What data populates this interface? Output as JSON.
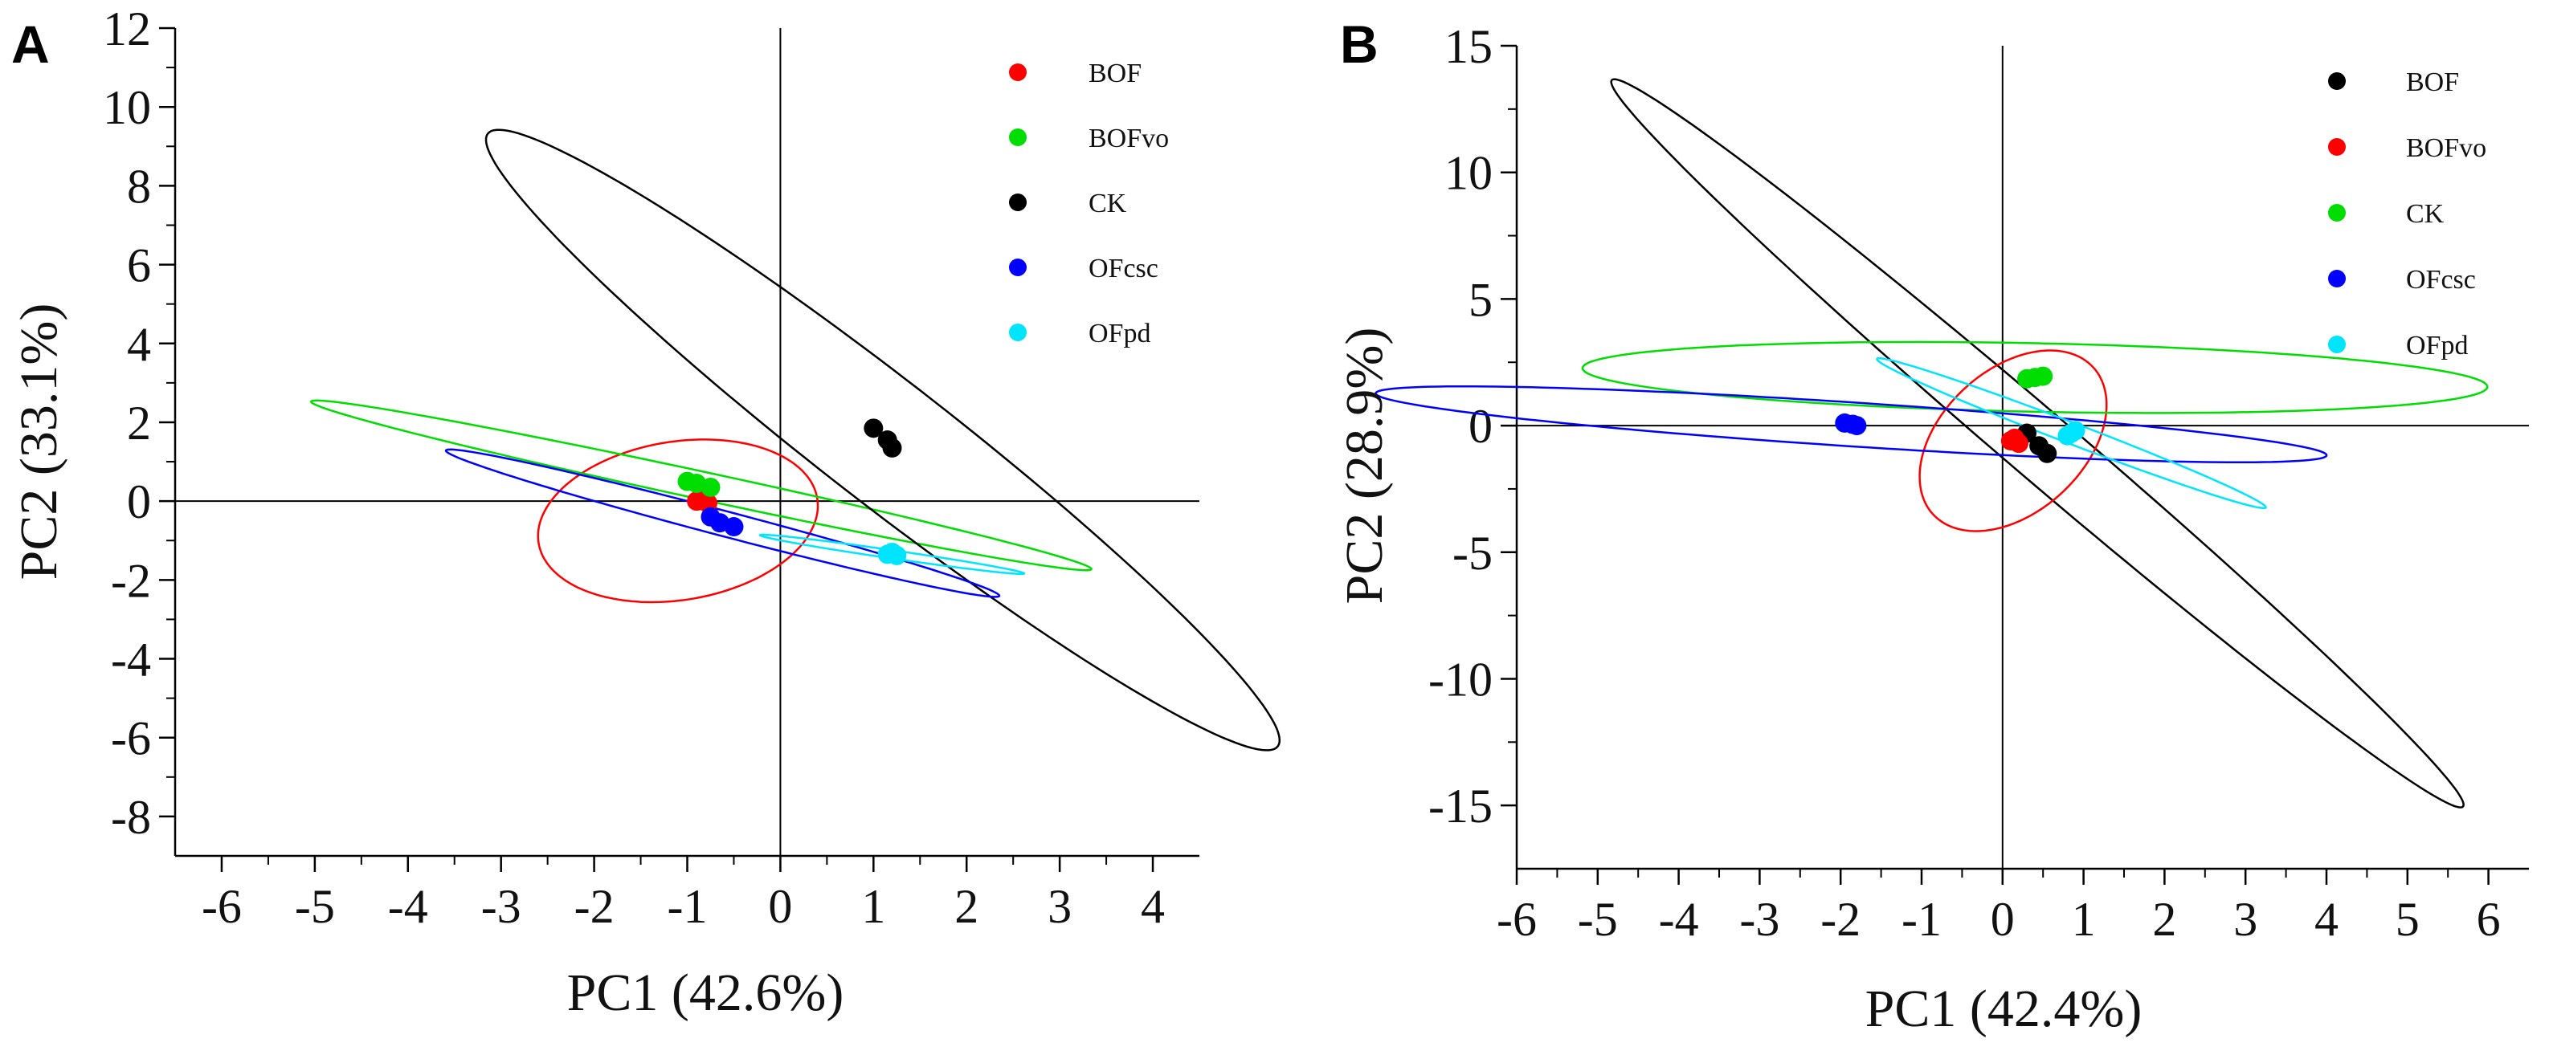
{
  "chart_data": [
    {
      "panel": "A",
      "type": "scatter",
      "xlabel": "PC1 (42.6%)",
      "ylabel": "PC2 (33.1%)",
      "xlim": [
        -6.5,
        4.5
      ],
      "ylim": [
        -9,
        12
      ],
      "xticks": [
        -6,
        -5,
        -4,
        -3,
        -2,
        -1,
        0,
        1,
        2,
        3,
        4
      ],
      "yticks": [
        -8,
        -6,
        -4,
        -2,
        0,
        2,
        4,
        6,
        8,
        10,
        12
      ],
      "legend_position": "top-right",
      "series": [
        {
          "name": "BOF",
          "color": "#ff0000",
          "points": [
            [
              -0.85,
              0.05
            ],
            [
              -0.78,
              -0.05
            ],
            [
              -0.9,
              0.0
            ]
          ],
          "ellipse": {
            "cx": -1.1,
            "cy": -0.5,
            "rx": 1.45,
            "ry": 2.1,
            "angle": -15
          }
        },
        {
          "name": "BOFvo",
          "color": "#00dd00",
          "points": [
            [
              -1.0,
              0.5
            ],
            [
              -0.9,
              0.45
            ],
            [
              -0.75,
              0.35
            ]
          ],
          "ellipse": {
            "cx": -0.85,
            "cy": 0.4,
            "rx": 4.7,
            "ry": 0.32,
            "angle": -27
          }
        },
        {
          "name": "CK",
          "color": "#000000",
          "points": [
            [
              1.0,
              1.85
            ],
            [
              1.15,
              1.55
            ],
            [
              1.2,
              1.35
            ]
          ],
          "ellipse": {
            "cx": 1.1,
            "cy": 1.55,
            "rx": 8.9,
            "ry": 0.95,
            "angle": -62
          }
        },
        {
          "name": "OFcsc",
          "color": "#0000ff",
          "points": [
            [
              -0.75,
              -0.4
            ],
            [
              -0.65,
              -0.55
            ],
            [
              -0.5,
              -0.65
            ]
          ],
          "ellipse": {
            "cx": -0.62,
            "cy": -0.56,
            "rx": 3.5,
            "ry": 0.28,
            "angle": -32
          }
        },
        {
          "name": "OFpd",
          "color": "#00e5ff",
          "points": [
            [
              1.2,
              -1.3
            ],
            [
              1.25,
              -1.38
            ],
            [
              1.15,
              -1.35
            ]
          ],
          "ellipse": {
            "cx": 1.2,
            "cy": -1.35,
            "rx": 1.5,
            "ry": 0.1,
            "angle": -19
          }
        }
      ]
    },
    {
      "panel": "B",
      "type": "scatter",
      "xlabel": "PC1 (42.4%)",
      "ylabel": "PC2 (28.9%)",
      "xlim": [
        -6,
        6.5
      ],
      "ylim": [
        -17.5,
        15
      ],
      "xticks": [
        -6,
        -5,
        -4,
        -3,
        -2,
        -1,
        0,
        1,
        2,
        3,
        4,
        5,
        6
      ],
      "yticks": [
        -15,
        -10,
        -5,
        0,
        5,
        10,
        15
      ],
      "legend_position": "top-right",
      "series": [
        {
          "name": "BOF",
          "color": "#000000",
          "points": [
            [
              0.3,
              -0.3
            ],
            [
              0.45,
              -0.8
            ],
            [
              0.55,
              -1.1
            ]
          ],
          "ellipse": {
            "cx": 0.43,
            "cy": -0.7,
            "rx": 15.3,
            "ry": 0.6,
            "angle": -70
          }
        },
        {
          "name": "BOFvo",
          "color": "#ff0000",
          "points": [
            [
              0.15,
              -0.5
            ],
            [
              0.2,
              -0.7
            ],
            [
              0.1,
              -0.6
            ]
          ],
          "ellipse": {
            "cx": 0.13,
            "cy": -0.6,
            "rx": 1.05,
            "ry": 3.6,
            "angle": -8
          }
        },
        {
          "name": "CK",
          "color": "#00dd00",
          "points": [
            [
              0.3,
              1.85
            ],
            [
              0.4,
              1.9
            ],
            [
              0.5,
              1.95
            ]
          ],
          "ellipse": {
            "cx": 0.4,
            "cy": 1.9,
            "rx": 5.6,
            "ry": 1.35,
            "angle": -4
          }
        },
        {
          "name": "OFcsc",
          "color": "#0000ff",
          "points": [
            [
              -1.95,
              0.1
            ],
            [
              -1.85,
              0.05
            ],
            [
              -1.8,
              0.0
            ]
          ],
          "ellipse": {
            "cx": -1.87,
            "cy": 0.05,
            "rx": 6.0,
            "ry": 0.85,
            "angle": -12
          }
        },
        {
          "name": "OFpd",
          "color": "#00e5ff",
          "points": [
            [
              0.8,
              -0.4
            ],
            [
              0.9,
              -0.2
            ],
            [
              0.85,
              -0.3
            ]
          ],
          "ellipse": {
            "cx": 0.85,
            "cy": -0.3,
            "rx": 3.8,
            "ry": 0.28,
            "angle": -51
          }
        }
      ]
    }
  ]
}
